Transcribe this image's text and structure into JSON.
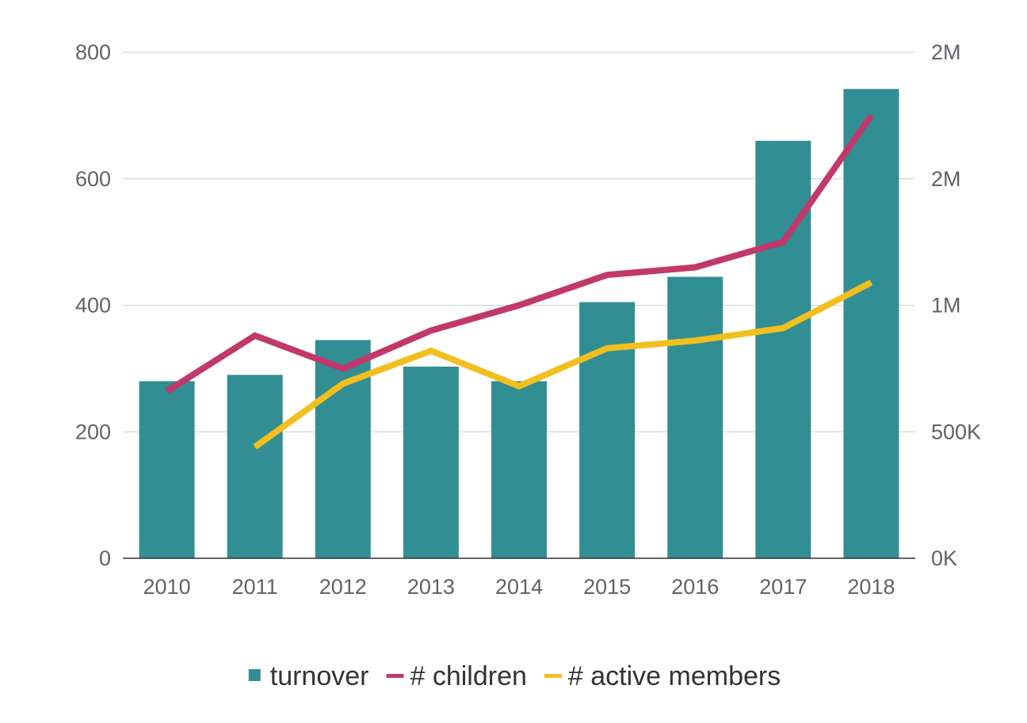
{
  "chart_data": {
    "type": "bar",
    "title": "",
    "xlabel": "",
    "ylabel": "",
    "categories": [
      "2010",
      "2011",
      "2012",
      "2013",
      "2014",
      "2015",
      "2016",
      "2017",
      "2018"
    ],
    "series": [
      {
        "name": "turnover",
        "type": "bar",
        "axis": "left",
        "color": "#318e93",
        "values": [
          280,
          290,
          345,
          303,
          280,
          405,
          445,
          660,
          742
        ]
      },
      {
        "name": "# children",
        "type": "line",
        "axis": "right",
        "color": "#c2386b",
        "values": [
          660000,
          880000,
          750000,
          900000,
          1000000,
          1120000,
          1150000,
          1250000,
          1750000
        ]
      },
      {
        "name": "# active members",
        "type": "line",
        "axis": "right",
        "color": "#f1bf1e",
        "values": [
          null,
          440000,
          690000,
          820000,
          680000,
          830000,
          860000,
          910000,
          1090000
        ]
      }
    ],
    "y_left": {
      "ylim": [
        0,
        800
      ],
      "ticks": [
        0,
        200,
        400,
        600,
        800
      ],
      "tick_labels": [
        "0",
        "200",
        "400",
        "600",
        "800"
      ]
    },
    "y_right": {
      "ylim": [
        0,
        2000000
      ],
      "ticks": [
        0,
        500000,
        1000000,
        1500000,
        2000000
      ],
      "tick_labels": [
        "0K",
        "500K",
        "1M",
        "2M",
        "2M"
      ]
    },
    "grid": true,
    "legend": {
      "position": "bottom",
      "entries": [
        "turnover",
        "# children",
        "# active members"
      ]
    }
  }
}
